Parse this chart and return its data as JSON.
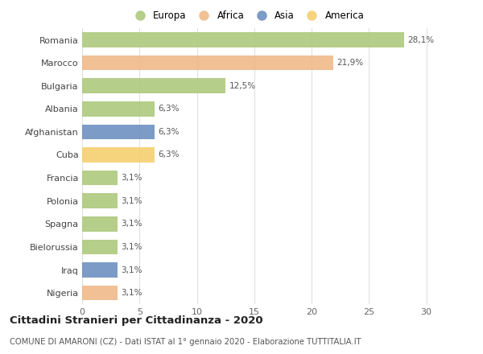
{
  "categories": [
    "Romania",
    "Marocco",
    "Bulgaria",
    "Albania",
    "Afghanistan",
    "Cuba",
    "Francia",
    "Polonia",
    "Spagna",
    "Bielorussia",
    "Iraq",
    "Nigeria"
  ],
  "values": [
    28.1,
    21.9,
    12.5,
    6.3,
    6.3,
    6.3,
    3.1,
    3.1,
    3.1,
    3.1,
    3.1,
    3.1
  ],
  "labels": [
    "28,1%",
    "21,9%",
    "12,5%",
    "6,3%",
    "6,3%",
    "6,3%",
    "3,1%",
    "3,1%",
    "3,1%",
    "3,1%",
    "3,1%",
    "3,1%"
  ],
  "colors": [
    "#adc97d",
    "#f0b98a",
    "#adc97d",
    "#adc97d",
    "#6e90c0",
    "#f5d070",
    "#adc97d",
    "#adc97d",
    "#adc97d",
    "#adc97d",
    "#6e90c0",
    "#f0b98a"
  ],
  "legend_labels": [
    "Europa",
    "Africa",
    "Asia",
    "America"
  ],
  "legend_colors": [
    "#adc97d",
    "#f0b98a",
    "#6e90c0",
    "#f5d070"
  ],
  "title": "Cittadini Stranieri per Cittadinanza - 2020",
  "subtitle": "COMUNE DI AMARONI (CZ) - Dati ISTAT al 1° gennaio 2020 - Elaborazione TUTTITALIA.IT",
  "xlim": [
    0,
    32
  ],
  "xticks": [
    0,
    5,
    10,
    15,
    20,
    25,
    30
  ],
  "background_color": "#ffffff",
  "grid_color": "#e0e0e0",
  "bar_height": 0.65
}
